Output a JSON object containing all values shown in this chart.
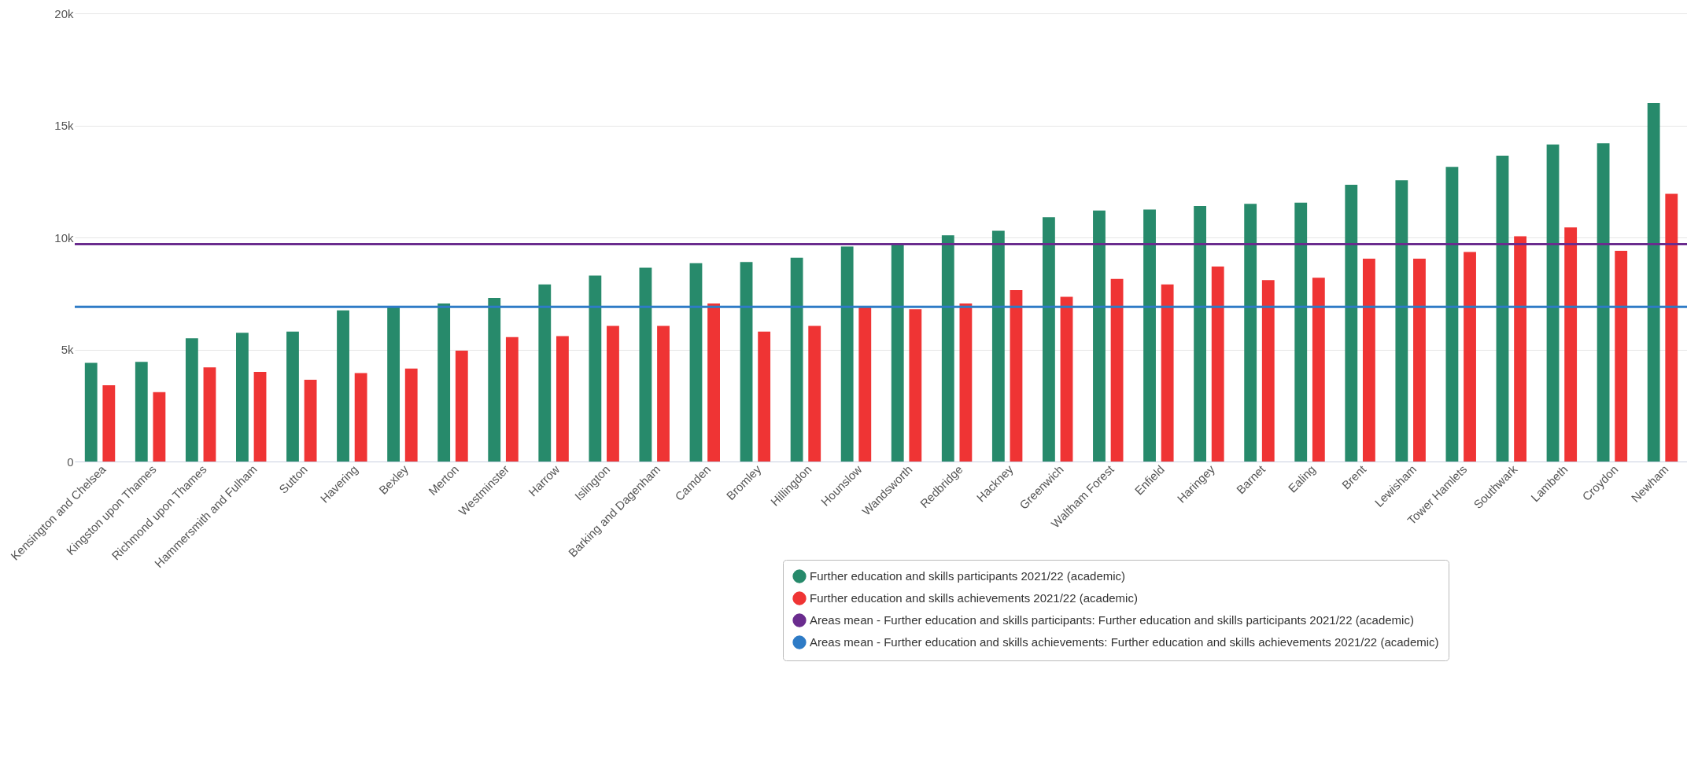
{
  "chart_data": {
    "type": "bar",
    "categories": [
      "Kensington and Chelsea",
      "Kingston upon Thames",
      "Richmond upon Thames",
      "Hammersmith and Fulham",
      "Sutton",
      "Havering",
      "Bexley",
      "Merton",
      "Westminster",
      "Harrow",
      "Islington",
      "Barking and Dagenham",
      "Camden",
      "Bromley",
      "Hillingdon",
      "Hounslow",
      "Wandsworth",
      "Redbridge",
      "Hackney",
      "Greenwich",
      "Waltham Forest",
      "Enfield",
      "Haringey",
      "Barnet",
      "Ealing",
      "Brent",
      "Lewisham",
      "Tower Hamlets",
      "Southwark",
      "Lambeth",
      "Croydon",
      "Newham"
    ],
    "series": [
      {
        "name": "Further education and skills participants 2021/22 (academic)",
        "color": "#278a6b",
        "values": [
          4400,
          4450,
          5500,
          5750,
          5800,
          6750,
          6900,
          7050,
          7300,
          7900,
          8300,
          8650,
          8850,
          8900,
          9100,
          9600,
          9700,
          10100,
          10300,
          10900,
          11200,
          11250,
          11400,
          11500,
          11550,
          12350,
          12550,
          13150,
          13650,
          14150,
          14200,
          16000
        ]
      },
      {
        "name": "Further education and skills achievements 2021/22 (academic)",
        "color": "#ef3434",
        "values": [
          3400,
          3100,
          4200,
          4000,
          3650,
          3950,
          4150,
          4950,
          5550,
          5600,
          6050,
          6050,
          7050,
          5800,
          6050,
          6900,
          6800,
          7050,
          7650,
          7350,
          8150,
          7900,
          8700,
          8100,
          8200,
          9050,
          9050,
          9350,
          10050,
          10450,
          9400,
          11950
        ]
      }
    ],
    "ref_lines": [
      {
        "axis": "y",
        "value": 9700,
        "label": "Areas mean - Further education and skills participants: Further education and skills participants 2021/22 (academic)",
        "color": "#6a2c8e"
      },
      {
        "axis": "y",
        "value": 6900,
        "label": "Areas mean - Further education and skills achievements: Further education and skills achievements 2021/22 (academic)",
        "color": "#2e7bc6"
      }
    ],
    "ylim": [
      0,
      20000
    ],
    "yticks": [
      {
        "value": 0,
        "label": "0"
      },
      {
        "value": 5000,
        "label": "5k"
      },
      {
        "value": 10000,
        "label": "10k"
      },
      {
        "value": 15000,
        "label": "15k"
      },
      {
        "value": 20000,
        "label": "20k"
      }
    ],
    "grid": "y",
    "legend": "bottom right"
  }
}
